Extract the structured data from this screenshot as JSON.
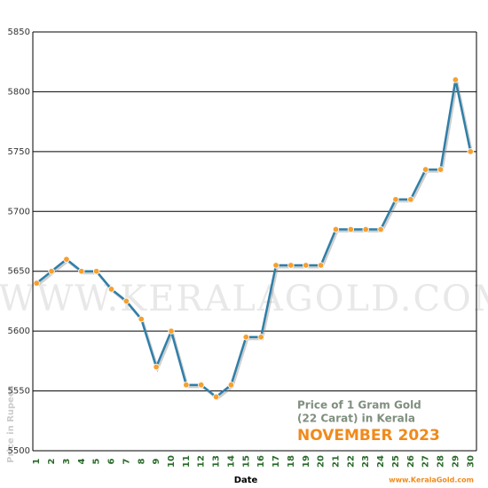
{
  "chart_data": {
    "type": "line",
    "title": "NOVEMBER 2023",
    "subtitle": [
      "Price of 1 Gram Gold",
      "(22 Carat) in Kerala"
    ],
    "watermark": "WWW.KERALAGOLD.COM",
    "credit": "www.KeralaGold.com",
    "x_label": "Date",
    "y_label": "Price in Rupees",
    "x": [
      1,
      2,
      3,
      4,
      5,
      6,
      7,
      8,
      9,
      10,
      11,
      12,
      13,
      14,
      15,
      16,
      17,
      18,
      19,
      20,
      21,
      22,
      23,
      24,
      25,
      26,
      27,
      28,
      29,
      30
    ],
    "xlim": [
      0.75,
      30.4
    ],
    "series": [
      {
        "name": "Price",
        "color": "#2f7fa8",
        "marker_color": "#f5a030",
        "values": [
          5640,
          5650,
          5660,
          5650,
          5650,
          5635,
          5625,
          5610,
          5570,
          5600,
          5555,
          5555,
          5545,
          5555,
          5595,
          5595,
          5655,
          5655,
          5655,
          5655,
          5685,
          5685,
          5685,
          5685,
          5710,
          5710,
          5735,
          5735,
          5810,
          5750
        ]
      }
    ],
    "ylim": [
      5500,
      5850
    ],
    "yticks": [
      5500,
      5550,
      5600,
      5650,
      5700,
      5750,
      5800,
      5850
    ],
    "grid": true
  }
}
